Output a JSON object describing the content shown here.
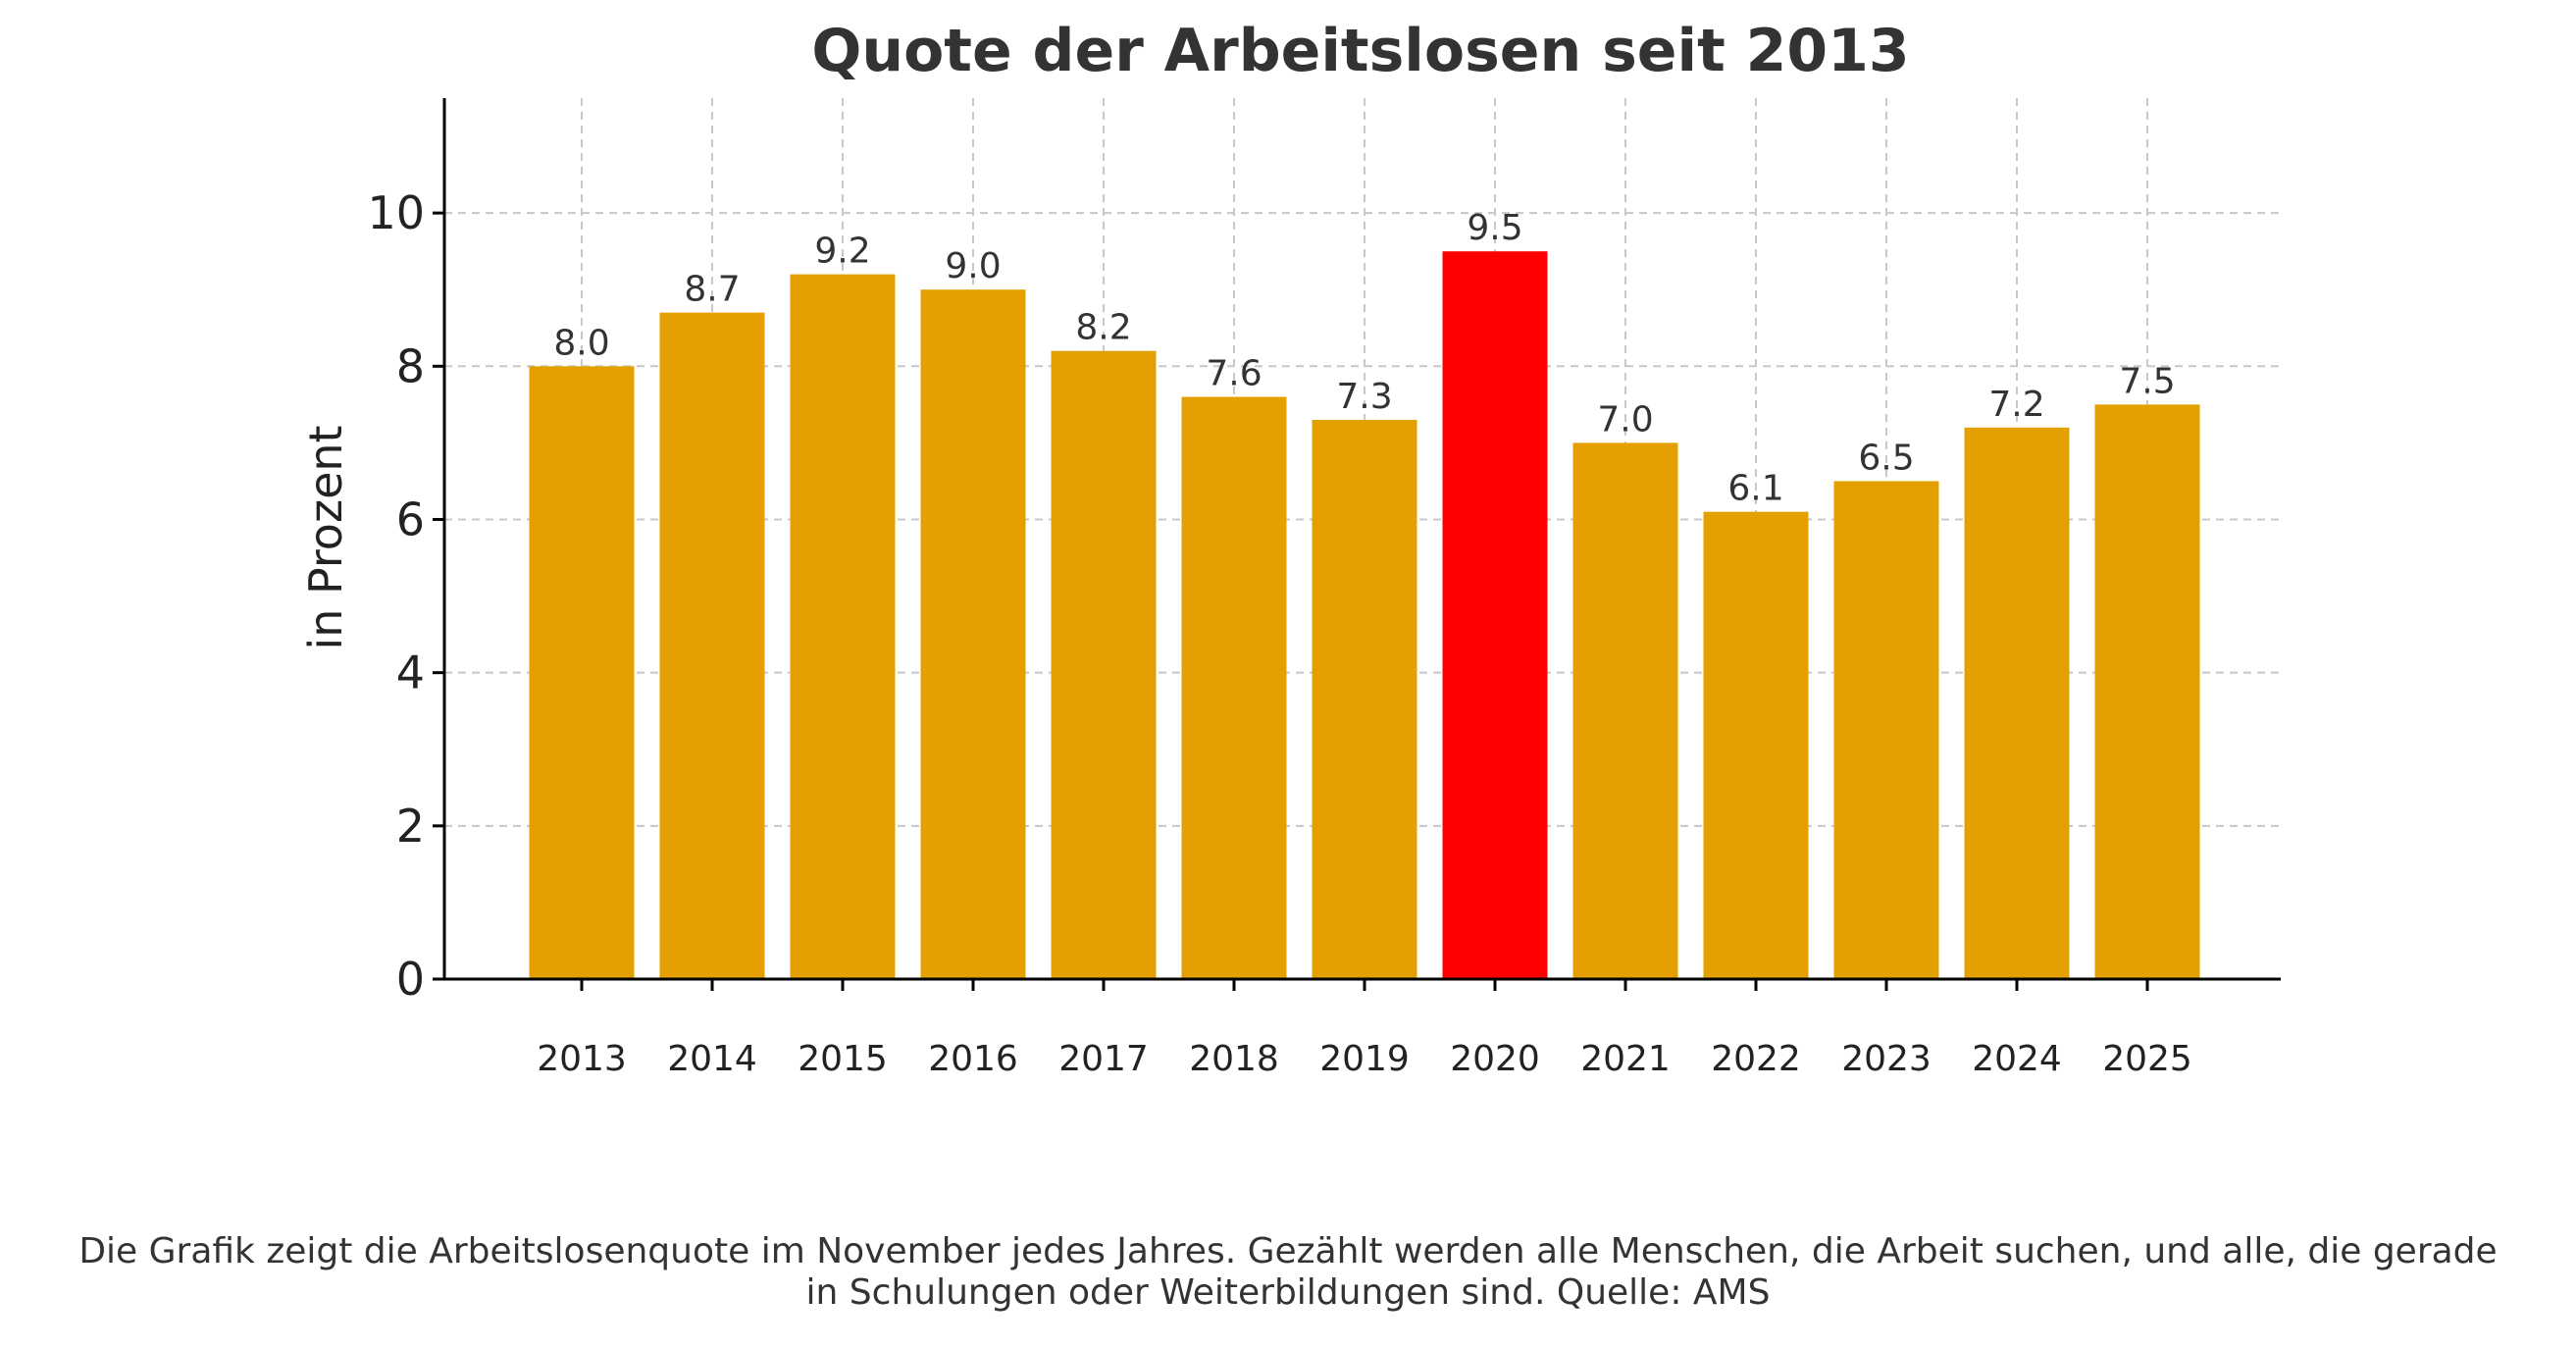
{
  "chart_data": {
    "type": "bar",
    "title": "Quote der Arbeitslosen seit 2013",
    "xlabel": "",
    "ylabel": "in Prozent",
    "categories": [
      "2013",
      "2014",
      "2015",
      "2016",
      "2017",
      "2018",
      "2019",
      "2020",
      "2021",
      "2022",
      "2023",
      "2024",
      "2025"
    ],
    "values": [
      8.0,
      8.7,
      9.2,
      9.0,
      8.2,
      7.6,
      7.3,
      9.5,
      7.0,
      6.1,
      6.5,
      7.2,
      7.5
    ],
    "value_labels": [
      "8.0",
      "8.7",
      "9.2",
      "9.0",
      "8.2",
      "7.6",
      "7.3",
      "9.5",
      "7.0",
      "6.1",
      "6.5",
      "7.2",
      "7.5"
    ],
    "y_ticks": [
      "0",
      "2",
      "4",
      "6",
      "8",
      "10"
    ],
    "ylim": [
      0,
      11.5
    ],
    "grid": true,
    "highlight_category": "2020",
    "colors": {
      "bar": "#E3A000",
      "highlight": "#FF0000",
      "grid": "#C8C8C8",
      "axis": "#000000",
      "text": "#333333"
    }
  },
  "caption": {
    "line1": "Die Grafik zeigt die Arbeitslosenquote im November jedes Jahres. Gezählt werden alle Menschen, die Arbeit suchen, und alle, die gerade",
    "line2": "in Schulungen oder Weiterbildungen sind. Quelle: AMS"
  }
}
